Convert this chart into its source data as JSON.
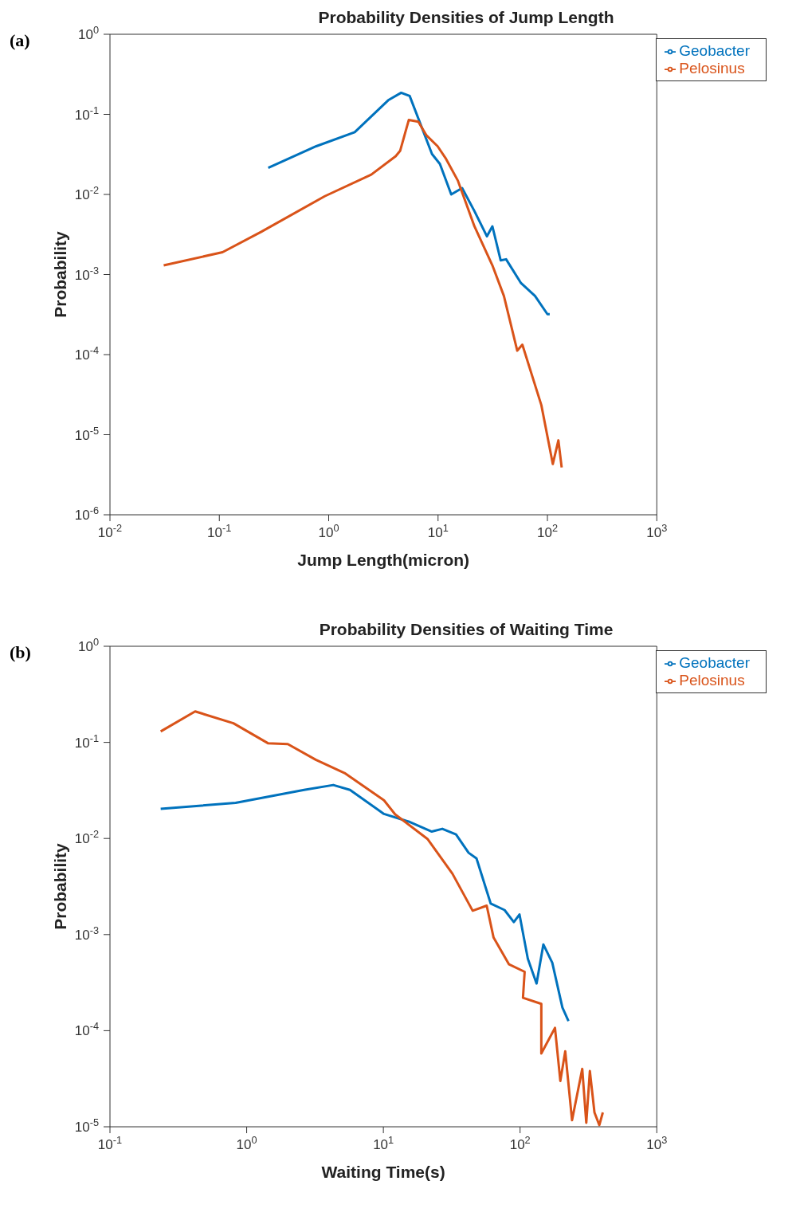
{
  "chart_data": [
    {
      "type": "line",
      "title": "Probability Densities of Jump Length",
      "xlabel": "Jump Length(micron)",
      "ylabel": "Probability",
      "annotations": [
        "(a)"
      ],
      "log": "xy",
      "grid": false,
      "legend": "top right",
      "xlim": [
        0.01,
        1000
      ],
      "xticks": [
        {
          "value": 0.01,
          "label": "10$^{-2}$"
        },
        {
          "value": 0.1,
          "label": "10$^{-1}$"
        },
        {
          "value": 1,
          "label": "10$^{0}$"
        },
        {
          "value": 10,
          "label": "10$^{1}$"
        },
        {
          "value": 100,
          "label": "10$^{2}$"
        },
        {
          "value": 1000,
          "label": "10$^{3}$"
        }
      ],
      "ylim": [
        1e-06,
        1
      ],
      "yticks": [
        {
          "value": 1e-06,
          "label": "10$^{-6}$"
        },
        {
          "value": 1e-05,
          "label": "10$^{-5}$"
        },
        {
          "value": 0.0001,
          "label": "10$^{-4}$"
        },
        {
          "value": 0.001,
          "label": "10$^{-3}$"
        },
        {
          "value": 0.01,
          "label": "10$^{-2}$"
        },
        {
          "value": 0.1,
          "label": "10$^{-1}$"
        },
        {
          "value": 1,
          "label": "10$^{0}$"
        }
      ],
      "series": [
        {
          "name": "Geobacter",
          "color": "#0072bd",
          "x": [
            0.28,
            0.77,
            1.73,
            3.5,
            4.6,
            5.5,
            8.8,
            10.4,
            13.2,
            16.6,
            21.5,
            28,
            31.4,
            37.4,
            41.9,
            57,
            77,
            100,
            105
          ],
          "values": [
            0.0215,
            0.04,
            0.06,
            0.15,
            0.186,
            0.17,
            0.032,
            0.024,
            0.01,
            0.012,
            0.0062,
            0.003,
            0.004,
            0.0015,
            0.00155,
            0.00079,
            0.00054,
            0.00032,
            0.00032
          ]
        },
        {
          "name": "Pelosinus",
          "color": "#d95319",
          "x": [
            0.031,
            0.107,
            0.24,
            0.92,
            2.45,
            4.1,
            4.5,
            5.4,
            6.6,
            7.8,
            9.9,
            11.7,
            15.2,
            21.5,
            31.4,
            40,
            53,
            59,
            88,
            112,
            126,
            135
          ],
          "values": [
            0.0013,
            0.0019,
            0.0034,
            0.0095,
            0.0177,
            0.03,
            0.035,
            0.085,
            0.081,
            0.055,
            0.04,
            0.0285,
            0.0148,
            0.004,
            0.0013,
            0.00054,
            0.000112,
            0.000133,
            2.34e-05,
            4.3e-06,
            8.5e-06,
            3.9e-06
          ]
        }
      ]
    },
    {
      "type": "line",
      "title": "Probability Densities of Waiting Time",
      "xlabel": "Waiting Time(s)",
      "ylabel": "Probability",
      "annotations": [
        "(b)"
      ],
      "log": "xy",
      "grid": false,
      "legend": "top right",
      "xlim": [
        0.1,
        1000
      ],
      "xticks": [
        {
          "value": 0.1,
          "label": "10$^{-1}$"
        },
        {
          "value": 1,
          "label": "10$^{0}$"
        },
        {
          "value": 10,
          "label": "10$^{1}$"
        },
        {
          "value": 100,
          "label": "10$^{2}$"
        },
        {
          "value": 1000,
          "label": "10$^{3}$"
        }
      ],
      "ylim": [
        1e-05,
        1
      ],
      "yticks": [
        {
          "value": 1e-05,
          "label": "10$^{-5}$"
        },
        {
          "value": 0.0001,
          "label": "10$^{-4}$"
        },
        {
          "value": 0.001,
          "label": "10$^{-3}$"
        },
        {
          "value": 0.01,
          "label": "10$^{-2}$"
        },
        {
          "value": 0.1,
          "label": "10$^{-1}$"
        },
        {
          "value": 1,
          "label": "10$^{0}$"
        }
      ],
      "series": [
        {
          "name": "Geobacter",
          "color": "#0072bd",
          "x": [
            0.235,
            0.83,
            2.63,
            4.3,
            5.7,
            10.1,
            15.3,
            22.6,
            27,
            34,
            42,
            48,
            61,
            77,
            90,
            99,
            114,
            132,
            148,
            172,
            204,
            226
          ],
          "values": [
            0.0203,
            0.0235,
            0.032,
            0.036,
            0.032,
            0.018,
            0.015,
            0.0118,
            0.0126,
            0.011,
            0.0071,
            0.0062,
            0.0021,
            0.0018,
            0.00135,
            0.00162,
            0.00056,
            0.00031,
            0.00079,
            0.00051,
            0.000174,
            0.000126
          ]
        },
        {
          "name": "Pelosinus",
          "color": "#d95319",
          "x": [
            0.235,
            0.42,
            0.8,
            1.43,
            2.0,
            3.2,
            5.2,
            10.1,
            12.2,
            21,
            32,
            45,
            57,
            64,
            83,
            108,
            105,
            143,
            143,
            180,
            197,
            214,
            240,
            285,
            305,
            324,
            350,
            380,
            403
          ],
          "values": [
            0.13,
            0.21,
            0.158,
            0.098,
            0.096,
            0.066,
            0.048,
            0.025,
            0.0178,
            0.0099,
            0.0043,
            0.00177,
            0.002,
            0.00093,
            0.00049,
            0.00041,
            0.00022,
            0.00019,
            5.8e-05,
            0.000107,
            3e-05,
            6.1e-05,
            1.17e-05,
            4e-05,
            1.1e-05,
            3.8e-05,
            1.41e-05,
            1.04e-05,
            1.41e-05
          ]
        }
      ]
    }
  ]
}
